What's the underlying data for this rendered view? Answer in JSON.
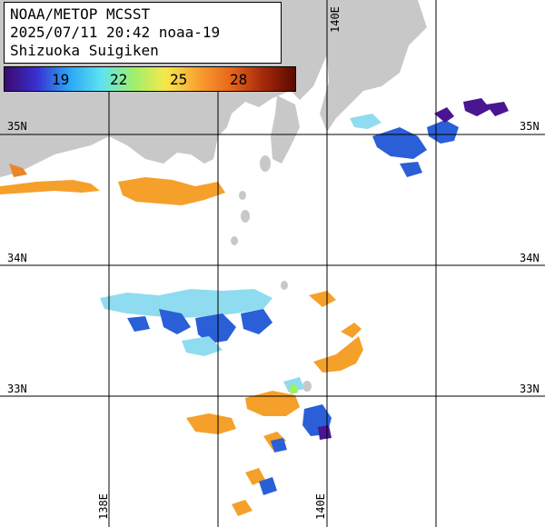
{
  "title": {
    "line1": "NOAA/METOP MCSST",
    "line2": "2025/07/11 20:42 noaa-19",
    "line3": "Shizuoka Suigiken"
  },
  "colorbar": {
    "ticks": [
      "19",
      "22",
      "25",
      "28"
    ],
    "colors": [
      "#3a0a6e",
      "#3b2fd0",
      "#2aa6f7",
      "#5ee3f0",
      "#9fef6b",
      "#f7e84a",
      "#f8a030",
      "#e8661a",
      "#a52a0a",
      "#5a0a00"
    ]
  },
  "axes": {
    "lat_labels": [
      "35N",
      "34N",
      "33N"
    ],
    "lon_labels": [
      "138E",
      "140E"
    ]
  },
  "palette": {
    "land": "#c8c8c8",
    "sea_no_data": "#ffffff",
    "warm_orange": "#f5a02a",
    "cool_blue": "#2a5fd8",
    "cyan": "#8fdcf0",
    "purple": "#4a1590"
  }
}
